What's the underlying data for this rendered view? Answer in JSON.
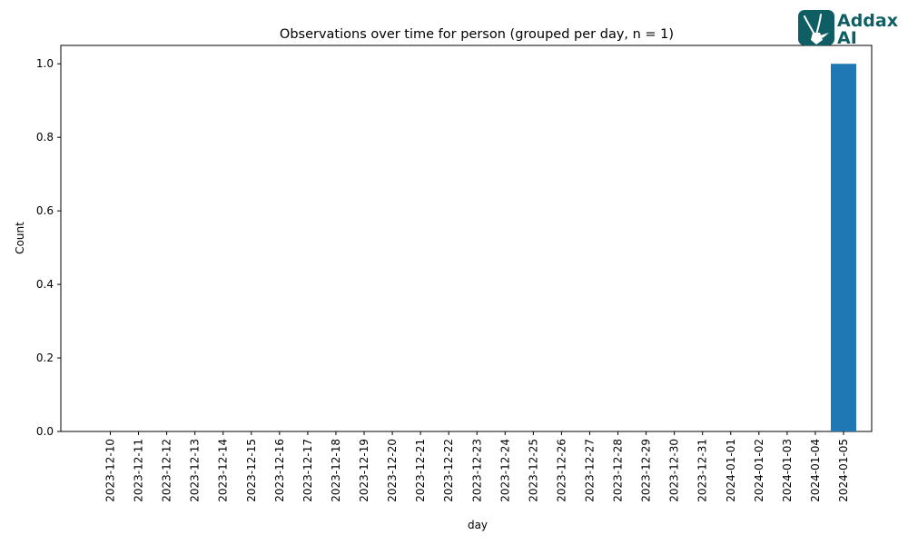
{
  "chart_data": {
    "type": "bar",
    "title": "Observations over time for person (grouped per day, n = 1)",
    "xlabel": "day",
    "ylabel": "Count",
    "ylim": [
      0,
      1.05
    ],
    "yticks": [
      "0.0",
      "0.2",
      "0.4",
      "0.6",
      "0.8",
      "1.0"
    ],
    "categories": [
      "2023-12-10",
      "2023-12-11",
      "2023-12-12",
      "2023-12-13",
      "2023-12-14",
      "2023-12-15",
      "2023-12-16",
      "2023-12-17",
      "2023-12-18",
      "2023-12-19",
      "2023-12-20",
      "2023-12-21",
      "2023-12-22",
      "2023-12-23",
      "2023-12-24",
      "2023-12-25",
      "2023-12-26",
      "2023-12-27",
      "2023-12-28",
      "2023-12-29",
      "2023-12-30",
      "2023-12-31",
      "2024-01-01",
      "2024-01-02",
      "2024-01-03",
      "2024-01-04",
      "2024-01-05"
    ],
    "values": [
      0,
      0,
      0,
      0,
      0,
      0,
      0,
      0,
      0,
      0,
      0,
      0,
      0,
      0,
      0,
      0,
      0,
      0,
      0,
      0,
      0,
      0,
      0,
      0,
      0,
      0,
      1
    ],
    "bar_color": "#1f77b4",
    "grid": false,
    "legend": false
  },
  "logo": {
    "line1": "Addax",
    "line2": "AI",
    "color": "#0f5e63",
    "icon": "antelope-head-icon"
  }
}
